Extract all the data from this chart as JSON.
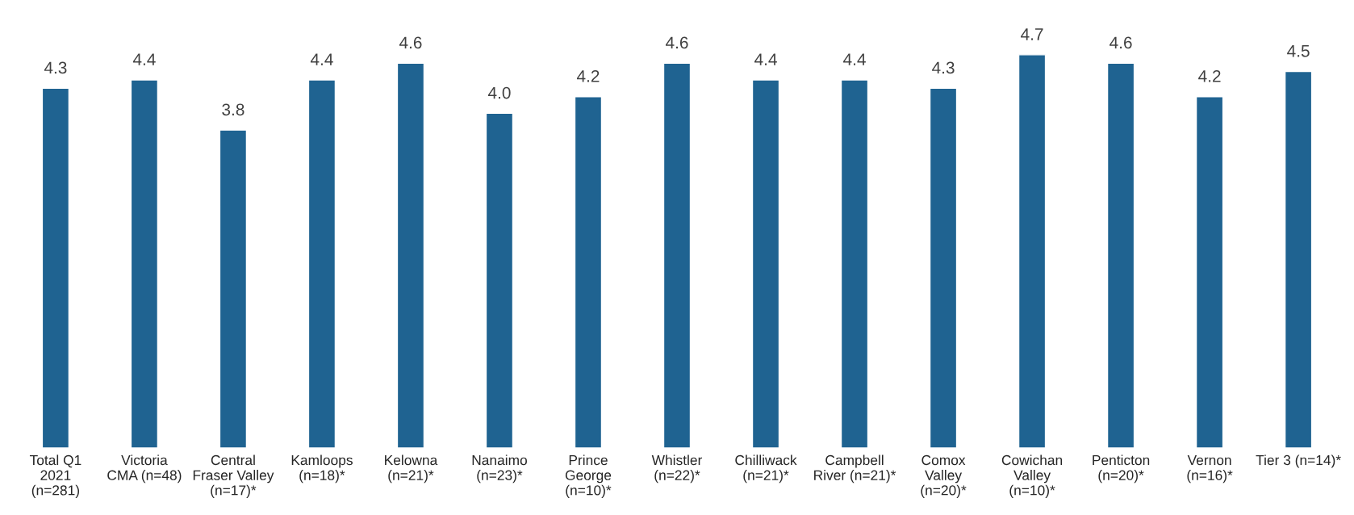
{
  "chart_data": {
    "type": "bar",
    "categories": [
      "Total Q1\n2021\n(n=281)",
      "Victoria\nCMA (n=48)",
      "Central\nFraser Valley\n(n=17)*",
      "Kamloops\n(n=18)*",
      "Kelowna\n(n=21)*",
      "Nanaimo\n(n=23)*",
      "Prince\nGeorge\n(n=10)*",
      "Whistler\n(n=22)*",
      "Chilliwack\n(n=21)*",
      "Campbell\nRiver (n=21)*",
      "Comox\nValley\n(n=20)*",
      "Cowichan\nValley\n(n=10)*",
      "Penticton\n(n=20)*",
      "Vernon\n(n=16)*",
      "Tier 3 (n=14)*"
    ],
    "values": [
      4.3,
      4.4,
      3.8,
      4.4,
      4.6,
      4.0,
      4.2,
      4.6,
      4.4,
      4.4,
      4.3,
      4.7,
      4.6,
      4.2,
      4.5
    ],
    "color": "#1f6391",
    "value_labels": [
      "4.3",
      "4.4",
      "3.8",
      "4.4",
      "4.6",
      "4.0",
      "4.2",
      "4.6",
      "4.4",
      "4.4",
      "4.3",
      "4.7",
      "4.6",
      "4.2",
      "4.5"
    ],
    "grid": false,
    "legend": false
  }
}
